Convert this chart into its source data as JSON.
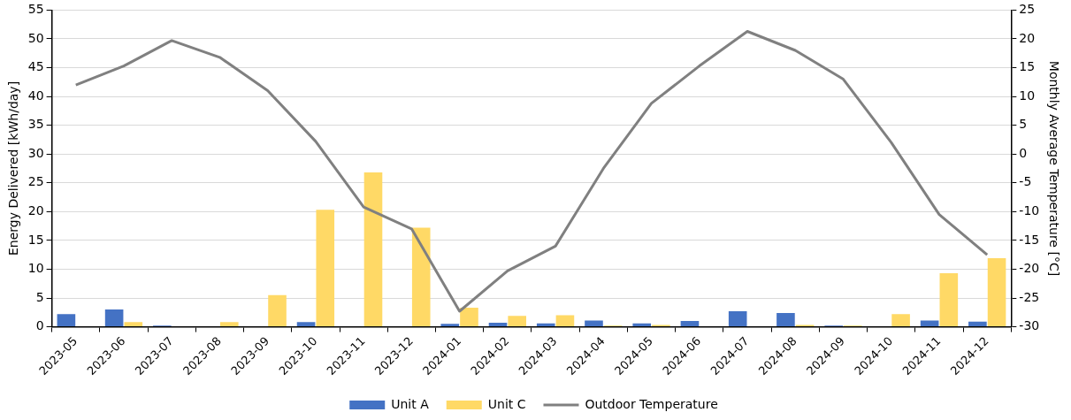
{
  "chart_data": {
    "type": "bar",
    "categories": [
      "2023-05",
      "2023-06",
      "2023-07",
      "2023-08",
      "2023-09",
      "2023-10",
      "2023-11",
      "2023-12",
      "2024-01",
      "2024-02",
      "2024-03",
      "2024-04",
      "2024-05",
      "2024-06",
      "2024-07",
      "2024-08",
      "2024-09",
      "2024-10",
      "2024-11",
      "2024-12"
    ],
    "ylabel": "Energy Delivered [kWh/day]",
    "y2label": "Monthly Average Temperature [°C]",
    "series": [
      {
        "name": "Unit A",
        "color": "#4472c4",
        "values": [
          2.2,
          3.0,
          0.2,
          0,
          0,
          0.8,
          0,
          0,
          0.5,
          0.7,
          0.6,
          1.1,
          0.6,
          1.0,
          2.7,
          2.4,
          0.2,
          0,
          1.1,
          0.9
        ]
      },
      {
        "name": "Unit C",
        "color": "#ffd966",
        "values": [
          0,
          0.8,
          0,
          0.8,
          5.5,
          20.3,
          26.8,
          17.2,
          3.3,
          1.9,
          2.0,
          0.2,
          0.3,
          0,
          0,
          0.3,
          0.2,
          2.2,
          9.3,
          11.9
        ]
      },
      {
        "name": "Outdoor Temperature",
        "type": "line",
        "axis": "y2",
        "color": "#808080",
        "values": [
          12,
          15.3,
          19.7,
          16.8,
          11,
          2.2,
          -9.2,
          -13,
          -27.3,
          -20.3,
          -16,
          -2.5,
          8.8,
          15.3,
          21.3,
          18,
          13,
          2,
          -10.5,
          -17.5
        ]
      }
    ],
    "ylim": [
      0,
      55
    ],
    "yticks": [
      0,
      5,
      10,
      15,
      20,
      25,
      30,
      35,
      40,
      45,
      50,
      55
    ],
    "y2lim": [
      -30,
      25
    ],
    "y2ticks": [
      -30,
      -25,
      -20,
      -15,
      -10,
      -5,
      0,
      5,
      10,
      15,
      20,
      25
    ],
    "grid": "y",
    "legend": "bottom",
    "marker": "none",
    "line_style": "solid"
  }
}
